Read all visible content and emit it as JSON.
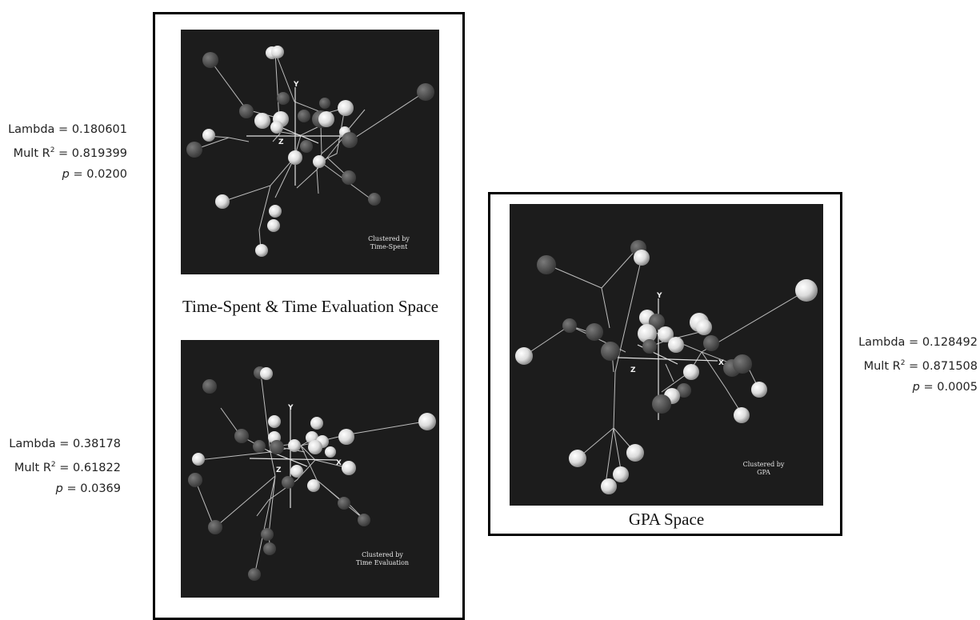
{
  "panels": {
    "time_spent": {
      "note_line1": "Clustered by",
      "note_line2": "Time-Spent",
      "stats": {
        "lambda": "Lambda = 0.180601",
        "mult_r2_prefix": "Mult R",
        "mult_r2_value": "= 0.819399",
        "p_label": "p",
        "p_value": "= 0.0200"
      }
    },
    "time_eval": {
      "note_line1": "Clustered by",
      "note_line2": "Time Evaluation",
      "stats": {
        "lambda": "Lambda = 0.38178",
        "mult_r2_prefix": "Mult R",
        "mult_r2_value": "= 0.61822",
        "p_label": "p",
        "p_value": "= 0.0369"
      }
    },
    "gpa": {
      "note_line1": "Clustered by",
      "note_line2": "GPA",
      "stats": {
        "lambda": "Lambda = 0.128492",
        "mult_r2_prefix": "Mult R",
        "mult_r2_value": "= 0.871508",
        "p_label": "p",
        "p_value": "= 0.0005"
      }
    }
  },
  "captions": {
    "left_frame": "Time-Spent & Time Evaluation Space",
    "right_frame": "GPA Space"
  },
  "axis_labels": {
    "x": "X",
    "y": "Y",
    "z": "Z"
  },
  "superscript": "2"
}
